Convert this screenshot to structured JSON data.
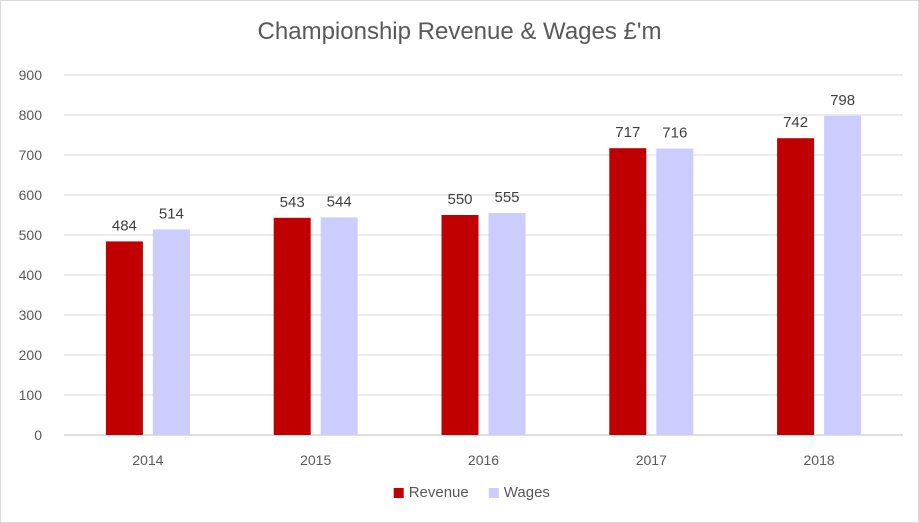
{
  "chart_data": {
    "type": "bar",
    "title": "Championship Revenue & Wages £'m",
    "categories": [
      "2014",
      "2015",
      "2016",
      "2017",
      "2018"
    ],
    "series": [
      {
        "name": "Revenue",
        "color": "#c00000",
        "values": [
          484,
          543,
          550,
          717,
          742
        ]
      },
      {
        "name": "Wages",
        "color": "#ccccff",
        "values": [
          514,
          544,
          555,
          716,
          798
        ]
      }
    ],
    "ylim": [
      0,
      900
    ],
    "yticks": [
      0,
      100,
      200,
      300,
      400,
      500,
      600,
      700,
      800,
      900
    ],
    "grid": true,
    "legend_position": "bottom"
  }
}
